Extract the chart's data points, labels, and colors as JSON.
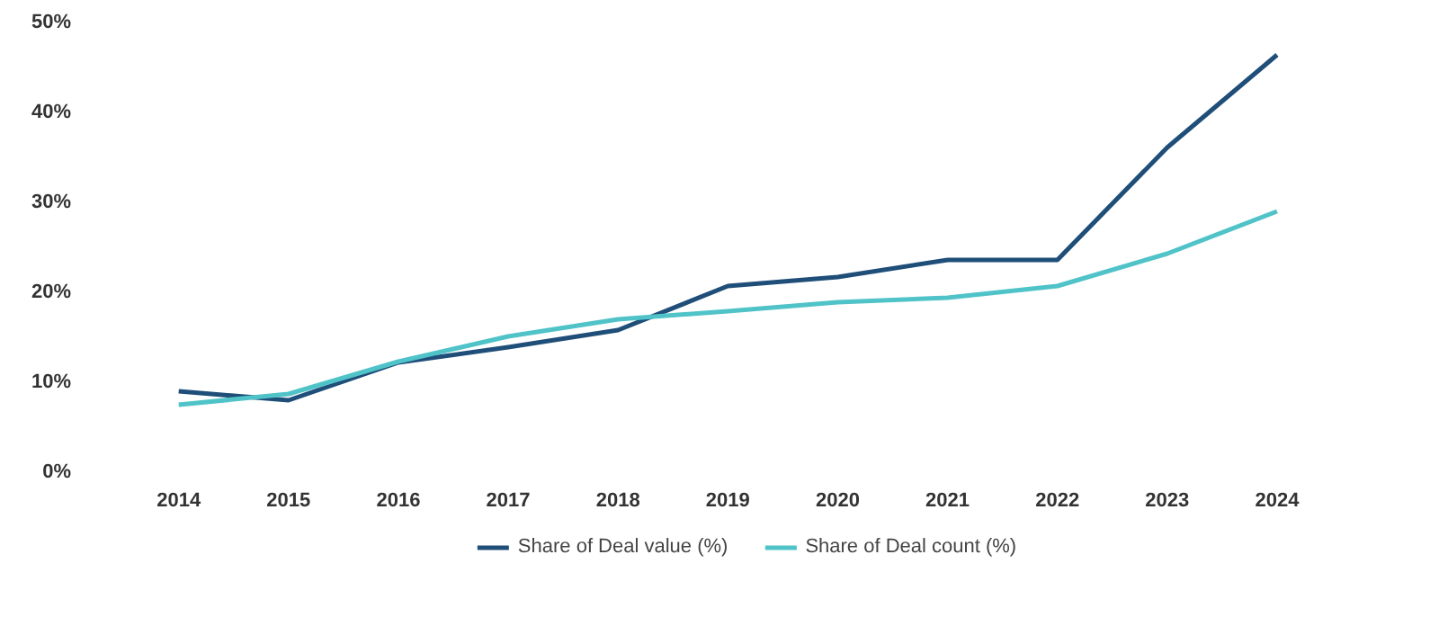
{
  "chart_data": {
    "type": "line",
    "categories": [
      "2014",
      "2015",
      "2016",
      "2017",
      "2018",
      "2019",
      "2020",
      "2021",
      "2022",
      "2023",
      "2024"
    ],
    "series": [
      {
        "name": "Share of Deal value (%)",
        "color": "#1f4e79",
        "values": [
          9.0,
          8.0,
          12.2,
          13.9,
          15.8,
          20.7,
          21.7,
          23.6,
          23.6,
          36.1,
          46.4
        ]
      },
      {
        "name": "Share of Deal count (%)",
        "color": "#4fc3c8",
        "values": [
          7.5,
          8.7,
          12.3,
          15.1,
          17.0,
          17.9,
          18.9,
          19.4,
          20.7,
          24.3,
          29.0
        ]
      }
    ],
    "ylim": [
      0,
      50
    ],
    "yticks": [
      {
        "value": 0,
        "label": "0%"
      },
      {
        "value": 10,
        "label": "10%"
      },
      {
        "value": 20,
        "label": "20%"
      },
      {
        "value": 30,
        "label": "30%"
      },
      {
        "value": 40,
        "label": "40%"
      },
      {
        "value": 50,
        "label": "50%"
      }
    ],
    "grid": false,
    "legend": "bottom",
    "line_style": "solid"
  }
}
